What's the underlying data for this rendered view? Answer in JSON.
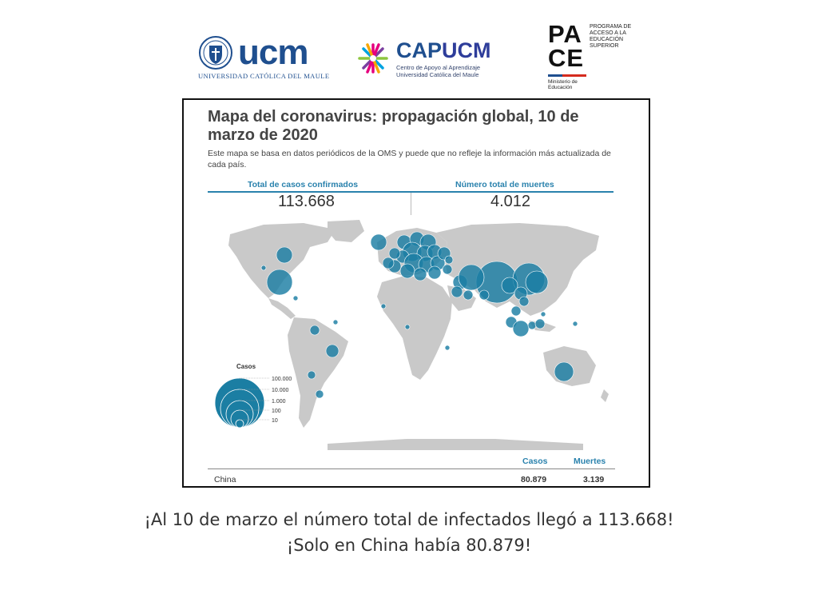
{
  "logos": {
    "ucm": {
      "word": "ucm",
      "subtitle": "UNIVERSIDAD CATÓLICA DEL MAULE",
      "color": "#1f4f8f"
    },
    "capucm": {
      "word_cap": "CAP",
      "word_ucm": "UCM",
      "line1": "Centro de Apoyo al Aprendizaje",
      "line2": "Universidad Católica del Maule"
    },
    "pace": {
      "letters_top": "PA",
      "letters_bottom": "CE",
      "text": "PROGRAMA DE ACCESO A LA EDUCACIÓN SUPERIOR",
      "ministry": "Ministerio de Educación",
      "flag_colors": [
        "#1f4f8f",
        "#d52b1e"
      ]
    }
  },
  "map_card": {
    "title": "Mapa del coronavirus: propagación global, 10 de marzo de 2020",
    "subtitle": "Este mapa se basa en datos periódicos de la OMS y puede que no refleje la información más actualizada de cada país.",
    "stats": {
      "cases_label": "Total de casos confirmados",
      "cases_value": "113.668",
      "deaths_label": "Número total de muertes",
      "deaths_value": "4.012"
    },
    "legend": {
      "title": "Casos",
      "levels": [
        "100.000",
        "10.000",
        "1.000",
        "100",
        "10"
      ]
    },
    "colors": {
      "bubble": "#1b7ea3",
      "land": "#c9c9c9",
      "accent": "#2a82ad"
    },
    "table": {
      "head_cases": "Casos",
      "head_deaths": "Muertes",
      "rows": [
        {
          "country": "China",
          "cases": "80.879",
          "deaths": "3.139"
        }
      ]
    }
  },
  "caption": {
    "line1": "¡Al 10 de marzo el número total de infectados llegó a 113.668!",
    "line2": "¡Solo en China había 80.879!"
  }
}
